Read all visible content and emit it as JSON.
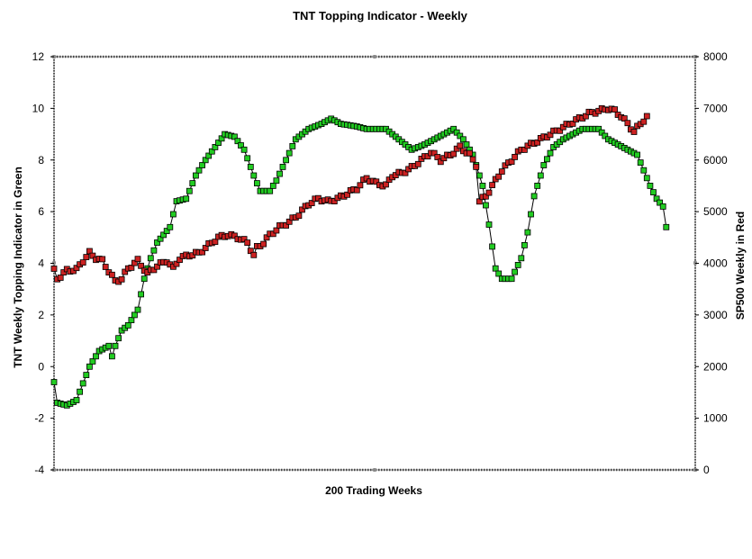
{
  "chart_data": {
    "type": "line",
    "title": "TNT Topping Indicator - Weekly",
    "xlabel": "200 Trading Weeks",
    "ylabel": "TNT Weekly Topping Indicator in Green",
    "y2label": "SP500 Weekly in Red",
    "ylim": [
      -4,
      12
    ],
    "y2lim": [
      0,
      8000
    ],
    "xlim": [
      1,
      200
    ],
    "yticks": [
      "12",
      "10",
      "8",
      "6",
      "4",
      "2",
      "0",
      "-2",
      "-4"
    ],
    "y2ticks": [
      "8000",
      "7000",
      "6000",
      "5000",
      "4000",
      "3000",
      "2000",
      "1000",
      "0"
    ],
    "grid": false,
    "legend": "none",
    "colors": {
      "tnt": "#22cc22",
      "sp500": "#cc2222",
      "line": "#000000"
    },
    "series": [
      {
        "axis": "left",
        "color": "#22cc22",
        "anchors": [
          [
            1,
            -0.6
          ],
          [
            2,
            -1.4
          ],
          [
            5,
            -1.5
          ],
          [
            8,
            -1.3
          ],
          [
            12,
            0.0
          ],
          [
            15,
            0.6
          ],
          [
            18,
            0.8
          ],
          [
            19,
            0.4
          ],
          [
            20,
            0.8
          ],
          [
            22,
            1.4
          ],
          [
            24,
            1.6
          ],
          [
            27,
            2.2
          ],
          [
            29,
            3.4
          ],
          [
            31,
            4.2
          ],
          [
            33,
            4.8
          ],
          [
            35,
            5.1
          ],
          [
            37,
            5.4
          ],
          [
            39,
            6.4
          ],
          [
            42,
            6.5
          ],
          [
            45,
            7.4
          ],
          [
            48,
            8.0
          ],
          [
            51,
            8.5
          ],
          [
            54,
            9.0
          ],
          [
            57,
            8.9
          ],
          [
            60,
            8.4
          ],
          [
            63,
            7.4
          ],
          [
            65,
            6.8
          ],
          [
            68,
            6.8
          ],
          [
            70,
            7.2
          ],
          [
            73,
            8.0
          ],
          [
            76,
            8.8
          ],
          [
            80,
            9.2
          ],
          [
            84,
            9.4
          ],
          [
            87,
            9.6
          ],
          [
            90,
            9.4
          ],
          [
            95,
            9.3
          ],
          [
            98,
            9.2
          ],
          [
            104,
            9.2
          ],
          [
            108,
            8.8
          ],
          [
            112,
            8.4
          ],
          [
            116,
            8.6
          ],
          [
            119,
            8.8
          ],
          [
            122,
            9.0
          ],
          [
            125,
            9.2
          ],
          [
            128,
            8.8
          ],
          [
            131,
            8.2
          ],
          [
            134,
            7.0
          ],
          [
            136,
            5.5
          ],
          [
            138,
            3.8
          ],
          [
            140,
            3.4
          ],
          [
            143,
            3.4
          ],
          [
            146,
            4.2
          ],
          [
            148,
            5.2
          ],
          [
            150,
            6.6
          ],
          [
            153,
            7.8
          ],
          [
            156,
            8.5
          ],
          [
            159,
            8.8
          ],
          [
            162,
            9.0
          ],
          [
            165,
            9.2
          ],
          [
            170,
            9.2
          ],
          [
            173,
            8.8
          ],
          [
            176,
            8.6
          ],
          [
            179,
            8.4
          ],
          [
            182,
            8.2
          ],
          [
            184,
            7.6
          ],
          [
            186,
            7.0
          ],
          [
            188,
            6.5
          ],
          [
            190,
            6.2
          ],
          [
            191,
            5.4
          ]
        ]
      },
      {
        "axis": "right",
        "color": "#cc2222",
        "anchors": [
          [
            1,
            3860
          ],
          [
            2,
            3700
          ],
          [
            5,
            3860
          ],
          [
            8,
            3880
          ],
          [
            10,
            4050
          ],
          [
            12,
            4200
          ],
          [
            14,
            4100
          ],
          [
            16,
            4050
          ],
          [
            18,
            3850
          ],
          [
            20,
            3650
          ],
          [
            22,
            3700
          ],
          [
            24,
            3900
          ],
          [
            27,
            4050
          ],
          [
            30,
            3800
          ],
          [
            33,
            3950
          ],
          [
            36,
            4050
          ],
          [
            38,
            3900
          ],
          [
            40,
            4100
          ],
          [
            43,
            4160
          ],
          [
            46,
            4200
          ],
          [
            49,
            4350
          ],
          [
            52,
            4500
          ],
          [
            55,
            4550
          ],
          [
            58,
            4500
          ],
          [
            61,
            4400
          ],
          [
            63,
            4150
          ],
          [
            64,
            4300
          ],
          [
            66,
            4400
          ],
          [
            68,
            4550
          ],
          [
            71,
            4700
          ],
          [
            74,
            4800
          ],
          [
            77,
            4950
          ],
          [
            80,
            5150
          ],
          [
            83,
            5250
          ],
          [
            86,
            5200
          ],
          [
            89,
            5250
          ],
          [
            92,
            5350
          ],
          [
            95,
            5450
          ],
          [
            98,
            5650
          ],
          [
            101,
            5550
          ],
          [
            104,
            5500
          ],
          [
            106,
            5700
          ],
          [
            109,
            5750
          ],
          [
            112,
            5850
          ],
          [
            115,
            6000
          ],
          [
            118,
            6150
          ],
          [
            121,
            6000
          ],
          [
            124,
            6100
          ],
          [
            127,
            6250
          ],
          [
            130,
            6100
          ],
          [
            132,
            5900
          ],
          [
            133,
            5200
          ],
          [
            135,
            5300
          ],
          [
            137,
            5500
          ],
          [
            140,
            5800
          ],
          [
            143,
            6000
          ],
          [
            146,
            6200
          ],
          [
            149,
            6300
          ],
          [
            152,
            6400
          ],
          [
            155,
            6500
          ],
          [
            158,
            6600
          ],
          [
            161,
            6700
          ],
          [
            164,
            6800
          ],
          [
            167,
            6900
          ],
          [
            170,
            6950
          ],
          [
            173,
            7000
          ],
          [
            175,
            6950
          ],
          [
            177,
            6850
          ],
          [
            179,
            6700
          ],
          [
            181,
            6550
          ],
          [
            183,
            6700
          ],
          [
            185,
            6850
          ]
        ]
      }
    ]
  }
}
